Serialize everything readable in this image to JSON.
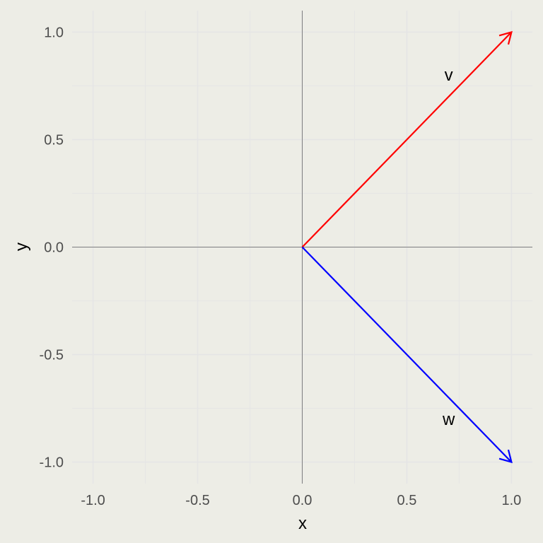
{
  "chart_data": {
    "type": "vector",
    "title": "",
    "xlabel": "x",
    "ylabel": "y",
    "xlim": [
      -1.1,
      1.1
    ],
    "ylim": [
      -1.1,
      1.1
    ],
    "xticks": [
      -1.0,
      -0.5,
      0.0,
      0.5,
      1.0
    ],
    "yticks": [
      -1.0,
      -0.5,
      0.0,
      0.5,
      1.0
    ],
    "xtick_labels": [
      "-1.0",
      "-0.5",
      "0.0",
      "0.5",
      "1.0"
    ],
    "ytick_labels": [
      "-1.0",
      "-0.5",
      "0.0",
      "0.5",
      "1.0"
    ],
    "grid": true,
    "reference_lines": {
      "x": 0,
      "y": 0
    },
    "vectors": [
      {
        "label": "v",
        "start": [
          0,
          0
        ],
        "end": [
          1,
          1
        ],
        "color": "#ff0000",
        "label_pos": [
          0.7,
          0.8
        ]
      },
      {
        "label": "w",
        "start": [
          0,
          0
        ],
        "end": [
          1,
          -1
        ],
        "color": "#0000ff",
        "label_pos": [
          0.7,
          -0.8
        ]
      }
    ]
  },
  "colors": {
    "background": "#edede6",
    "grid": "#e5e5e5",
    "reference_line": "#808080"
  }
}
